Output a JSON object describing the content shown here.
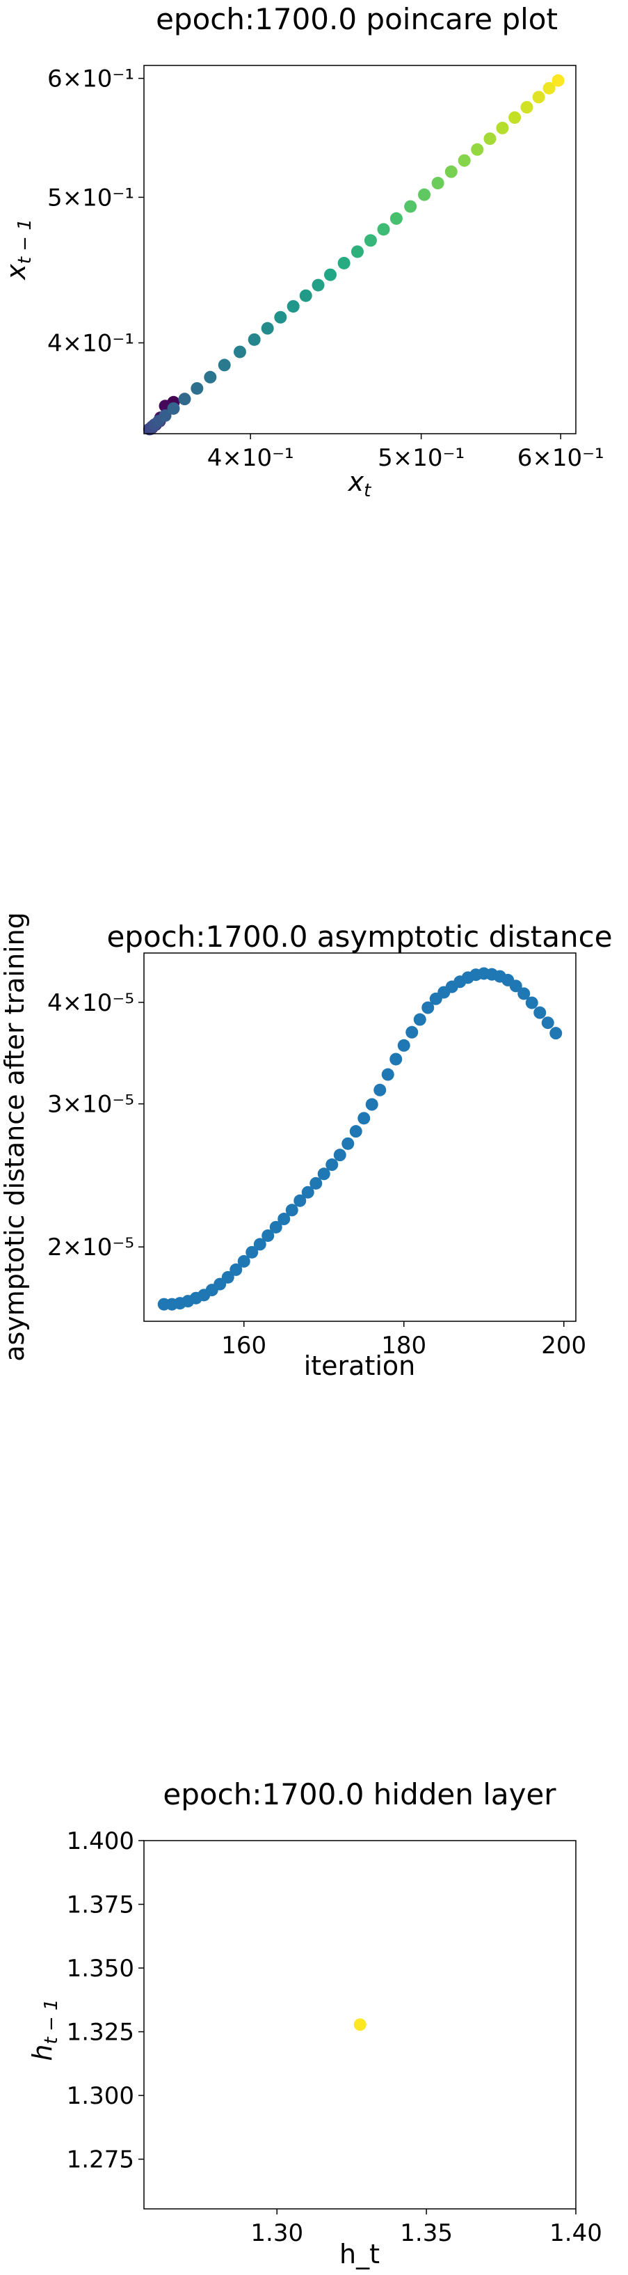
{
  "chart_data": [
    {
      "type": "scatter",
      "title": "epoch:1700.0 poincare plot",
      "xlabel": "x_t",
      "ylabel": "x_{t-1}",
      "xscale": "log",
      "yscale": "log",
      "xlim": [
        0.348,
        0.612
      ],
      "ylim": [
        0.348,
        0.612
      ],
      "xticks": [
        {
          "value": 0.4,
          "label": "4×10⁻¹"
        },
        {
          "value": 0.5,
          "label": "5×10⁻¹"
        },
        {
          "value": 0.6,
          "label": "6×10⁻¹"
        }
      ],
      "yticks": [
        {
          "value": 0.4,
          "label": "4×10⁻¹"
        },
        {
          "value": 0.5,
          "label": "5×10⁻¹"
        },
        {
          "value": 0.6,
          "label": "6×10⁻¹"
        }
      ],
      "colormap": "viridis",
      "color_order": "by point index (early = purple, late = yellow)",
      "points": [
        [
          0.3617,
          0.3652
        ],
        [
          0.3578,
          0.3631
        ],
        [
          0.3556,
          0.3566
        ],
        [
          0.3552,
          0.3548
        ],
        [
          0.3534,
          0.3529
        ],
        [
          0.3522,
          0.352
        ],
        [
          0.3517,
          0.3512
        ],
        [
          0.3512,
          0.3507
        ],
        [
          0.3507,
          0.3505
        ],
        [
          0.3505,
          0.3505
        ],
        [
          0.3517,
          0.3517
        ],
        [
          0.3529,
          0.3529
        ],
        [
          0.3548,
          0.3548
        ],
        [
          0.3578,
          0.3578
        ],
        [
          0.3617,
          0.3617
        ],
        [
          0.367,
          0.367
        ],
        [
          0.373,
          0.373
        ],
        [
          0.3795,
          0.3795
        ],
        [
          0.3866,
          0.3866
        ],
        [
          0.3945,
          0.3945
        ],
        [
          0.402,
          0.402
        ],
        [
          0.409,
          0.409
        ],
        [
          0.416,
          0.416
        ],
        [
          0.423,
          0.423
        ],
        [
          0.43,
          0.43
        ],
        [
          0.437,
          0.437
        ],
        [
          0.444,
          0.444
        ],
        [
          0.452,
          0.452
        ],
        [
          0.46,
          0.46
        ],
        [
          0.468,
          0.468
        ],
        [
          0.476,
          0.476
        ],
        [
          0.484,
          0.484
        ],
        [
          0.493,
          0.493
        ],
        [
          0.502,
          0.502
        ],
        [
          0.511,
          0.511
        ],
        [
          0.52,
          0.52
        ],
        [
          0.529,
          0.529
        ],
        [
          0.538,
          0.538
        ],
        [
          0.547,
          0.547
        ],
        [
          0.556,
          0.556
        ],
        [
          0.565,
          0.565
        ],
        [
          0.574,
          0.574
        ],
        [
          0.583,
          0.583
        ],
        [
          0.591,
          0.591
        ],
        [
          0.598,
          0.598
        ]
      ]
    },
    {
      "type": "scatter",
      "title": "epoch:1700.0 asymptotic distance",
      "xlabel": "iteration",
      "ylabel": "asymptotic distance after training",
      "xscale": "linear",
      "yscale": "log",
      "xlim": [
        147.5,
        201.5
      ],
      "ylim": [
        1.62e-05,
        4.6e-05
      ],
      "xticks": [
        {
          "value": 160,
          "label": "160"
        },
        {
          "value": 180,
          "label": "180"
        },
        {
          "value": 200,
          "label": "200"
        }
      ],
      "yticks": [
        {
          "value": 2e-05,
          "label": "2×10⁻⁵"
        },
        {
          "value": 3e-05,
          "label": "3×10⁻⁵"
        },
        {
          "value": 4e-05,
          "label": "4×10⁻⁵"
        }
      ],
      "color": "#1f77b4",
      "x": [
        150,
        151,
        152,
        153,
        154,
        155,
        156,
        157,
        158,
        159,
        160,
        161,
        162,
        163,
        164,
        165,
        166,
        167,
        168,
        169,
        170,
        171,
        172,
        173,
        174,
        175,
        176,
        177,
        178,
        179,
        180,
        181,
        182,
        183,
        184,
        185,
        186,
        187,
        188,
        189,
        190,
        191,
        192,
        193,
        194,
        195,
        196,
        197,
        198,
        199
      ],
      "y": [
        1.7e-05,
        1.7e-05,
        1.705e-05,
        1.715e-05,
        1.73e-05,
        1.745e-05,
        1.77e-05,
        1.8e-05,
        1.835e-05,
        1.875e-05,
        1.92e-05,
        1.97e-05,
        2.015e-05,
        2.065e-05,
        2.115e-05,
        2.165e-05,
        2.22e-05,
        2.28e-05,
        2.335e-05,
        2.395e-05,
        2.46e-05,
        2.525e-05,
        2.595e-05,
        2.68e-05,
        2.775e-05,
        2.88e-05,
        2.995e-05,
        3.12e-05,
        3.26e-05,
        3.405e-05,
        3.54e-05,
        3.675e-05,
        3.81e-05,
        3.94e-05,
        4.04e-05,
        4.115e-05,
        4.18e-05,
        4.24e-05,
        4.29e-05,
        4.325e-05,
        4.34e-05,
        4.33e-05,
        4.305e-05,
        4.26e-05,
        4.19e-05,
        4.1e-05,
        3.995e-05,
        3.885e-05,
        3.775e-05,
        3.665e-05
      ]
    },
    {
      "type": "scatter",
      "title": "epoch:1700.0 hidden layer",
      "xlabel": "h_t",
      "ylabel": "h_{t-1}",
      "xscale": "linear",
      "yscale": "linear",
      "xlim": [
        1.2555,
        1.4
      ],
      "ylim": [
        1.2555,
        1.4
      ],
      "xticks": [
        {
          "value": 1.3,
          "label": "1.30"
        },
        {
          "value": 1.35,
          "label": "1.35"
        },
        {
          "value": 1.4,
          "label": "1.40"
        }
      ],
      "yticks": [
        {
          "value": 1.275,
          "label": "1.275"
        },
        {
          "value": 1.3,
          "label": "1.300"
        },
        {
          "value": 1.325,
          "label": "1.325"
        },
        {
          "value": 1.35,
          "label": "1.350"
        },
        {
          "value": 1.375,
          "label": "1.375"
        },
        {
          "value": 1.4,
          "label": "1.400"
        }
      ],
      "color": "#fde725",
      "points": [
        [
          1.3278,
          1.3278
        ]
      ]
    }
  ]
}
